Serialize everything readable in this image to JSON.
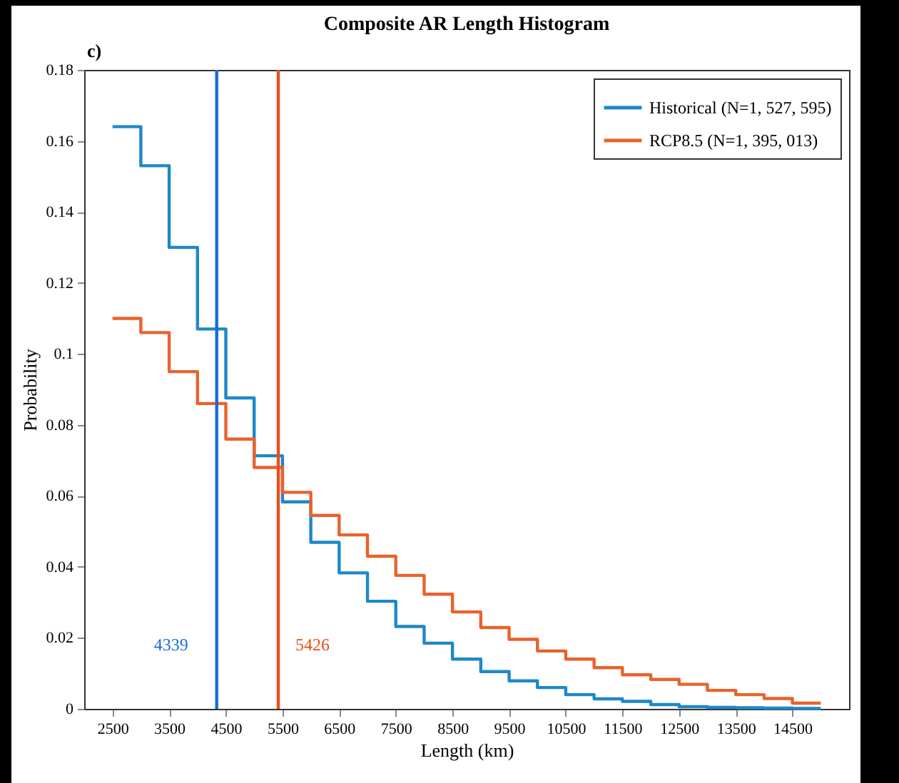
{
  "chart_data": {
    "type": "histogram",
    "title": "Composite AR Length Histogram",
    "xlabel": "Length (km)",
    "ylabel": "Probability",
    "annotations": [
      "c)"
    ],
    "bins": [
      2500,
      3000,
      3500,
      4000,
      4500,
      5000,
      5500,
      6000,
      6500,
      7000,
      7500,
      8000,
      8500,
      9000,
      9500,
      10000,
      10500,
      11000,
      11500,
      12000,
      12500,
      13000,
      13500,
      14000,
      14500,
      15000
    ],
    "series": [
      {
        "name": "Historical (N=1, 527, 595)",
        "color": "#1e88c8",
        "values": [
          0.164,
          0.153,
          0.13,
          0.107,
          0.0876,
          0.0713,
          0.0583,
          0.0469,
          0.0383,
          0.0303,
          0.0232,
          0.0185,
          0.014,
          0.0105,
          0.0079,
          0.006,
          0.004,
          0.0028,
          0.0021,
          0.0012,
          0.0006,
          0.0004,
          0.0003,
          0.0002,
          0.0001
        ]
      },
      {
        "name": "RCP8.5 (N=1, 395, 013)",
        "color": "#e8632c",
        "values": [
          0.11,
          0.106,
          0.095,
          0.086,
          0.076,
          0.068,
          0.061,
          0.0545,
          0.049,
          0.043,
          0.0376,
          0.0323,
          0.0273,
          0.0229,
          0.0196,
          0.0163,
          0.014,
          0.0116,
          0.0096,
          0.0083,
          0.0069,
          0.0052,
          0.004,
          0.0029,
          0.0016
        ]
      }
    ],
    "ref_lines": [
      {
        "axis": "x",
        "value": 4339,
        "label": "4339",
        "color": "#1a6ad8"
      },
      {
        "axis": "x",
        "value": 5426,
        "label": "5426",
        "color": "#ea4e1c"
      }
    ],
    "xlim": [
      2000,
      15500
    ],
    "xticks": [
      2500,
      3500,
      4500,
      5500,
      6500,
      7500,
      8500,
      9500,
      10500,
      11500,
      12500,
      13500,
      14500
    ],
    "ylim": [
      0,
      0.18
    ],
    "yticks": [
      0,
      0.02,
      0.04,
      0.06,
      0.08,
      0.1,
      0.12,
      0.14,
      0.16,
      0.18
    ],
    "legend": "top right",
    "grid": false
  }
}
